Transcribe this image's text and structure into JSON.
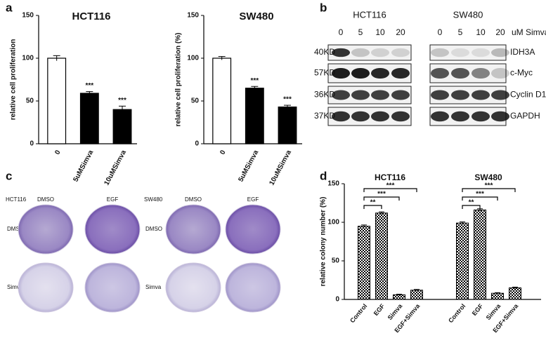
{
  "panel_labels": [
    "a",
    "b",
    "c",
    "d"
  ],
  "chart_data": [
    {
      "type": "bar",
      "title": "HCT116",
      "y_label": "relative cell proliferation",
      "categories": [
        "0",
        "5uMSimva",
        "10uMSimva"
      ],
      "values": [
        100,
        59,
        40
      ],
      "errors": [
        3,
        2,
        4
      ],
      "significance": [
        null,
        "***",
        "***"
      ],
      "colors": [
        "#ffffff",
        "#000000",
        "#000000"
      ],
      "ylim": [
        0,
        150
      ],
      "yticks": [
        0,
        50,
        100,
        150
      ]
    },
    {
      "type": "bar",
      "title": "SW480",
      "y_label": "relative cell proliferation (%)",
      "categories": [
        "0",
        "5uMSimva",
        "10uMSimva"
      ],
      "values": [
        100,
        65,
        43
      ],
      "errors": [
        2,
        2,
        2
      ],
      "significance": [
        null,
        "***",
        "***"
      ],
      "colors": [
        "#ffffff",
        "#000000",
        "#000000"
      ],
      "ylim": [
        0,
        150
      ],
      "yticks": [
        0,
        50,
        100,
        150
      ]
    },
    {
      "type": "grouped-bar",
      "y_label": "relative  colony number (%)",
      "categories": [
        "Control",
        "EGF",
        "Simva",
        "EGF+Simva"
      ],
      "groups": [
        {
          "name": "HCT116",
          "values": [
            95,
            112,
            6,
            12
          ],
          "errors": [
            1.5,
            1.5,
            0.8,
            1
          ],
          "brackets": [
            "**",
            "***",
            "***"
          ]
        },
        {
          "name": "SW480",
          "values": [
            99,
            116,
            8,
            15
          ],
          "errors": [
            1.5,
            1.5,
            0.8,
            1
          ],
          "brackets": [
            "**",
            "***",
            "***"
          ]
        }
      ],
      "ylim": [
        0,
        150
      ],
      "yticks": [
        0,
        50,
        100,
        150
      ]
    }
  ],
  "blot": {
    "cell_lines": [
      "HCT116",
      "SW480"
    ],
    "doses": [
      "0",
      "5",
      "10",
      "20"
    ],
    "unit": "uM Simva",
    "sizes": [
      "40KD",
      "57KD",
      "36KD",
      "37KD"
    ],
    "proteins": [
      "IDH3A",
      "c-Myc",
      "Cyclin D1",
      "GAPDH"
    ]
  },
  "colony": {
    "cell_lines": [
      "HCT116",
      "SW480"
    ],
    "columns": [
      "DMSO",
      "EGF"
    ],
    "rows": [
      "DMSO",
      "Simva"
    ]
  }
}
